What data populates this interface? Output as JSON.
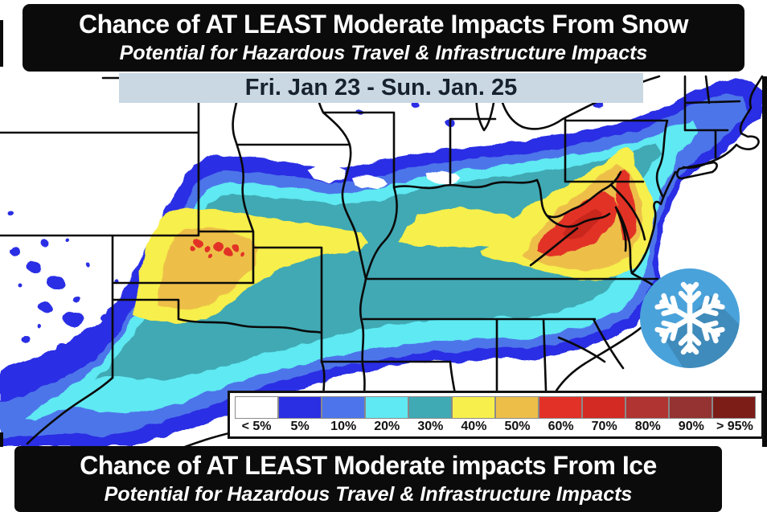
{
  "header": {
    "title": "Chance of AT LEAST Moderate Impacts From Snow",
    "subtitle": "Potential for Hazardous Travel & Infrastructure Impacts",
    "bg": "#0b0b0b",
    "text_color": "#ffffff"
  },
  "date_banner": {
    "label": "Fri. Jan 23 - Sun. Jan. 25",
    "bg": "#c9d8e3",
    "text_color": "#17222e"
  },
  "footer": {
    "title": "Chance of AT LEAST Moderate impacts From Ice",
    "subtitle": "Potential for Hazardous Travel & Infrastructure Impacts",
    "bg": "#0b0b0b",
    "text_color": "#ffffff"
  },
  "map": {
    "icon": "snowflake-icon",
    "icon_circle_color": "#4aa2da",
    "icon_glyph_color": "#ffffff",
    "border_color": "#0a0a0a"
  },
  "legend": {
    "items": [
      {
        "label": "< 5%",
        "color": "#ffffff"
      },
      {
        "label": "5%",
        "color": "#2a2fe4"
      },
      {
        "label": "10%",
        "color": "#4d74ea"
      },
      {
        "label": "20%",
        "color": "#5fe9f2"
      },
      {
        "label": "30%",
        "color": "#3fa9b4"
      },
      {
        "label": "40%",
        "color": "#f7ef4b"
      },
      {
        "label": "50%",
        "color": "#edbf49"
      },
      {
        "label": "60%",
        "color": "#e23127"
      },
      {
        "label": "70%",
        "color": "#d32a23"
      },
      {
        "label": "80%",
        "color": "#b03431"
      },
      {
        "label": "90%",
        "color": "#943331"
      },
      {
        "label": "> 95%",
        "color": "#7c1d18"
      }
    ]
  }
}
